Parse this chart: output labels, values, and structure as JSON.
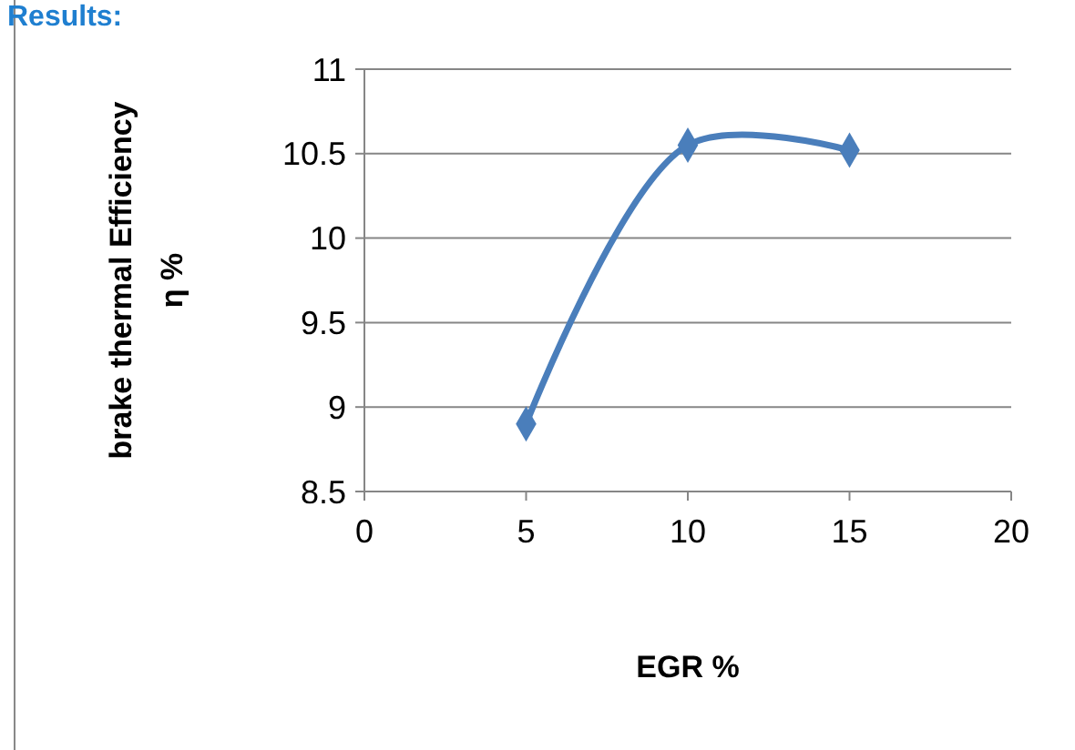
{
  "chart_data": {
    "type": "line",
    "title": "Results:",
    "xlabel": "EGR  %",
    "ylabel": "brake thermal Efficiency\nη %",
    "x": [
      5,
      10,
      15
    ],
    "series": [
      {
        "color": "#4a7ebb",
        "values": [
          8.9,
          10.55,
          10.52
        ]
      }
    ],
    "xlim": [
      0,
      20
    ],
    "xticks": [
      0,
      5,
      10,
      15,
      20
    ],
    "ylim": [
      8.5,
      11
    ],
    "yticks": [
      8.5,
      9,
      9.5,
      10,
      10.5,
      11
    ],
    "grid": "y",
    "marker": "diamond",
    "line_style": "solid"
  }
}
